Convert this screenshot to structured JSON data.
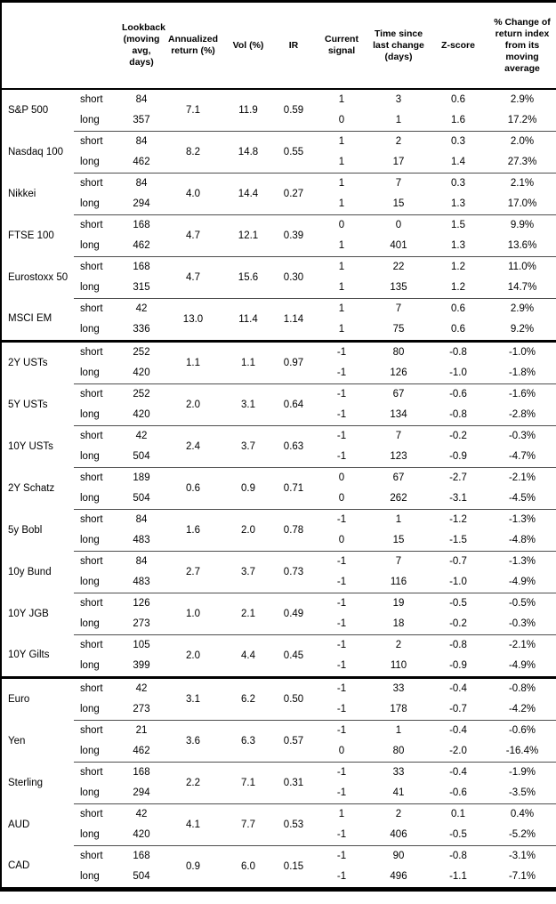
{
  "colors": {
    "background": "#ffffff",
    "text": "#000000",
    "outer_border": "#000000",
    "section_divider": "#000000",
    "group_separator": "#4d4d4d"
  },
  "table": {
    "columns": [
      {
        "id": "asset",
        "label": ""
      },
      {
        "id": "horizon",
        "label": ""
      },
      {
        "id": "lookback",
        "label": "Lookback\n(moving\navg, days)"
      },
      {
        "id": "ann_return",
        "label": "Annualized\nreturn (%)"
      },
      {
        "id": "vol",
        "label": "Vol (%)"
      },
      {
        "id": "ir",
        "label": "IR"
      },
      {
        "id": "signal",
        "label": "Current\nsignal"
      },
      {
        "id": "time_since",
        "label": "Time since\nlast change\n(days)"
      },
      {
        "id": "zscore",
        "label": "Z-score"
      },
      {
        "id": "pct_change",
        "label": "% Change of\nreturn index\nfrom its\nmoving\naverage"
      }
    ],
    "groups": [
      {
        "asset": "S&P 500",
        "section_start": false,
        "ann_return": "7.1",
        "vol": "11.9",
        "ir": "0.59",
        "rows": [
          {
            "horizon": "short",
            "lookback": "84",
            "signal": "1",
            "time_since": "3",
            "zscore": "0.6",
            "pct_change": "2.9%"
          },
          {
            "horizon": "long",
            "lookback": "357",
            "signal": "0",
            "time_since": "1",
            "zscore": "1.6",
            "pct_change": "17.2%"
          }
        ]
      },
      {
        "asset": "Nasdaq 100",
        "section_start": false,
        "ann_return": "8.2",
        "vol": "14.8",
        "ir": "0.55",
        "rows": [
          {
            "horizon": "short",
            "lookback": "84",
            "signal": "1",
            "time_since": "2",
            "zscore": "0.3",
            "pct_change": "2.0%"
          },
          {
            "horizon": "long",
            "lookback": "462",
            "signal": "1",
            "time_since": "17",
            "zscore": "1.4",
            "pct_change": "27.3%"
          }
        ]
      },
      {
        "asset": "Nikkei",
        "section_start": false,
        "ann_return": "4.0",
        "vol": "14.4",
        "ir": "0.27",
        "rows": [
          {
            "horizon": "short",
            "lookback": "84",
            "signal": "1",
            "time_since": "7",
            "zscore": "0.3",
            "pct_change": "2.1%"
          },
          {
            "horizon": "long",
            "lookback": "294",
            "signal": "1",
            "time_since": "15",
            "zscore": "1.3",
            "pct_change": "17.0%"
          }
        ]
      },
      {
        "asset": "FTSE 100",
        "section_start": false,
        "ann_return": "4.7",
        "vol": "12.1",
        "ir": "0.39",
        "rows": [
          {
            "horizon": "short",
            "lookback": "168",
            "signal": "0",
            "time_since": "0",
            "zscore": "1.5",
            "pct_change": "9.9%"
          },
          {
            "horizon": "long",
            "lookback": "462",
            "signal": "1",
            "time_since": "401",
            "zscore": "1.3",
            "pct_change": "13.6%"
          }
        ]
      },
      {
        "asset": "Eurostoxx 50",
        "section_start": false,
        "ann_return": "4.7",
        "vol": "15.6",
        "ir": "0.30",
        "rows": [
          {
            "horizon": "short",
            "lookback": "168",
            "signal": "1",
            "time_since": "22",
            "zscore": "1.2",
            "pct_change": "11.0%"
          },
          {
            "horizon": "long",
            "lookback": "315",
            "signal": "1",
            "time_since": "135",
            "zscore": "1.2",
            "pct_change": "14.7%"
          }
        ]
      },
      {
        "asset": "MSCI EM",
        "section_start": false,
        "ann_return": "13.0",
        "vol": "11.4",
        "ir": "1.14",
        "rows": [
          {
            "horizon": "short",
            "lookback": "42",
            "signal": "1",
            "time_since": "7",
            "zscore": "0.6",
            "pct_change": "2.9%"
          },
          {
            "horizon": "long",
            "lookback": "336",
            "signal": "1",
            "time_since": "75",
            "zscore": "0.6",
            "pct_change": "9.2%"
          }
        ]
      },
      {
        "asset": "2Y USTs",
        "section_start": true,
        "ann_return": "1.1",
        "vol": "1.1",
        "ir": "0.97",
        "rows": [
          {
            "horizon": "short",
            "lookback": "252",
            "signal": "-1",
            "time_since": "80",
            "zscore": "-0.8",
            "pct_change": "-1.0%"
          },
          {
            "horizon": "long",
            "lookback": "420",
            "signal": "-1",
            "time_since": "126",
            "zscore": "-1.0",
            "pct_change": "-1.8%"
          }
        ]
      },
      {
        "asset": "5Y USTs",
        "section_start": false,
        "ann_return": "2.0",
        "vol": "3.1",
        "ir": "0.64",
        "rows": [
          {
            "horizon": "short",
            "lookback": "252",
            "signal": "-1",
            "time_since": "67",
            "zscore": "-0.6",
            "pct_change": "-1.6%"
          },
          {
            "horizon": "long",
            "lookback": "420",
            "signal": "-1",
            "time_since": "134",
            "zscore": "-0.8",
            "pct_change": "-2.8%"
          }
        ]
      },
      {
        "asset": "10Y USTs",
        "section_start": false,
        "ann_return": "2.4",
        "vol": "3.7",
        "ir": "0.63",
        "rows": [
          {
            "horizon": "short",
            "lookback": "42",
            "signal": "-1",
            "time_since": "7",
            "zscore": "-0.2",
            "pct_change": "-0.3%"
          },
          {
            "horizon": "long",
            "lookback": "504",
            "signal": "-1",
            "time_since": "123",
            "zscore": "-0.9",
            "pct_change": "-4.7%"
          }
        ]
      },
      {
        "asset": "2Y Schatz",
        "section_start": false,
        "ann_return": "0.6",
        "vol": "0.9",
        "ir": "0.71",
        "rows": [
          {
            "horizon": "short",
            "lookback": "189",
            "signal": "0",
            "time_since": "67",
            "zscore": "-2.7",
            "pct_change": "-2.1%"
          },
          {
            "horizon": "long",
            "lookback": "504",
            "signal": "0",
            "time_since": "262",
            "zscore": "-3.1",
            "pct_change": "-4.5%"
          }
        ]
      },
      {
        "asset": "5y Bobl",
        "section_start": false,
        "ann_return": "1.6",
        "vol": "2.0",
        "ir": "0.78",
        "rows": [
          {
            "horizon": "short",
            "lookback": "84",
            "signal": "-1",
            "time_since": "1",
            "zscore": "-1.2",
            "pct_change": "-1.3%"
          },
          {
            "horizon": "long",
            "lookback": "483",
            "signal": "0",
            "time_since": "15",
            "zscore": "-1.5",
            "pct_change": "-4.8%"
          }
        ]
      },
      {
        "asset": "10y Bund",
        "section_start": false,
        "ann_return": "2.7",
        "vol": "3.7",
        "ir": "0.73",
        "rows": [
          {
            "horizon": "short",
            "lookback": "84",
            "signal": "-1",
            "time_since": "7",
            "zscore": "-0.7",
            "pct_change": "-1.3%"
          },
          {
            "horizon": "long",
            "lookback": "483",
            "signal": "-1",
            "time_since": "116",
            "zscore": "-1.0",
            "pct_change": "-4.9%"
          }
        ]
      },
      {
        "asset": "10Y JGB",
        "section_start": false,
        "ann_return": "1.0",
        "vol": "2.1",
        "ir": "0.49",
        "rows": [
          {
            "horizon": "short",
            "lookback": "126",
            "signal": "-1",
            "time_since": "19",
            "zscore": "-0.5",
            "pct_change": "-0.5%"
          },
          {
            "horizon": "long",
            "lookback": "273",
            "signal": "-1",
            "time_since": "18",
            "zscore": "-0.2",
            "pct_change": "-0.3%"
          }
        ]
      },
      {
        "asset": "10Y Gilts",
        "section_start": false,
        "ann_return": "2.0",
        "vol": "4.4",
        "ir": "0.45",
        "rows": [
          {
            "horizon": "short",
            "lookback": "105",
            "signal": "-1",
            "time_since": "2",
            "zscore": "-0.8",
            "pct_change": "-2.1%"
          },
          {
            "horizon": "long",
            "lookback": "399",
            "signal": "-1",
            "time_since": "110",
            "zscore": "-0.9",
            "pct_change": "-4.9%"
          }
        ]
      },
      {
        "asset": "Euro",
        "section_start": true,
        "ann_return": "3.1",
        "vol": "6.2",
        "ir": "0.50",
        "rows": [
          {
            "horizon": "short",
            "lookback": "42",
            "signal": "-1",
            "time_since": "33",
            "zscore": "-0.4",
            "pct_change": "-0.8%"
          },
          {
            "horizon": "long",
            "lookback": "273",
            "signal": "-1",
            "time_since": "178",
            "zscore": "-0.7",
            "pct_change": "-4.2%"
          }
        ]
      },
      {
        "asset": "Yen",
        "section_start": false,
        "ann_return": "3.6",
        "vol": "6.3",
        "ir": "0.57",
        "rows": [
          {
            "horizon": "short",
            "lookback": "21",
            "signal": "-1",
            "time_since": "1",
            "zscore": "-0.4",
            "pct_change": "-0.6%"
          },
          {
            "horizon": "long",
            "lookback": "462",
            "signal": "0",
            "time_since": "80",
            "zscore": "-2.0",
            "pct_change": "-16.4%"
          }
        ]
      },
      {
        "asset": "Sterling",
        "section_start": false,
        "ann_return": "2.2",
        "vol": "7.1",
        "ir": "0.31",
        "rows": [
          {
            "horizon": "short",
            "lookback": "168",
            "signal": "-1",
            "time_since": "33",
            "zscore": "-0.4",
            "pct_change": "-1.9%"
          },
          {
            "horizon": "long",
            "lookback": "294",
            "signal": "-1",
            "time_since": "41",
            "zscore": "-0.6",
            "pct_change": "-3.5%"
          }
        ]
      },
      {
        "asset": "AUD",
        "section_start": false,
        "ann_return": "4.1",
        "vol": "7.7",
        "ir": "0.53",
        "rows": [
          {
            "horizon": "short",
            "lookback": "42",
            "signal": "1",
            "time_since": "2",
            "zscore": "0.1",
            "pct_change": "0.4%"
          },
          {
            "horizon": "long",
            "lookback": "420",
            "signal": "-1",
            "time_since": "406",
            "zscore": "-0.5",
            "pct_change": "-5.2%"
          }
        ]
      },
      {
        "asset": "CAD",
        "section_start": false,
        "ann_return": "0.9",
        "vol": "6.0",
        "ir": "0.15",
        "rows": [
          {
            "horizon": "short",
            "lookback": "168",
            "signal": "-1",
            "time_since": "90",
            "zscore": "-0.8",
            "pct_change": "-3.1%"
          },
          {
            "horizon": "long",
            "lookback": "504",
            "signal": "-1",
            "time_since": "496",
            "zscore": "-1.1",
            "pct_change": "-7.1%"
          }
        ]
      }
    ]
  }
}
